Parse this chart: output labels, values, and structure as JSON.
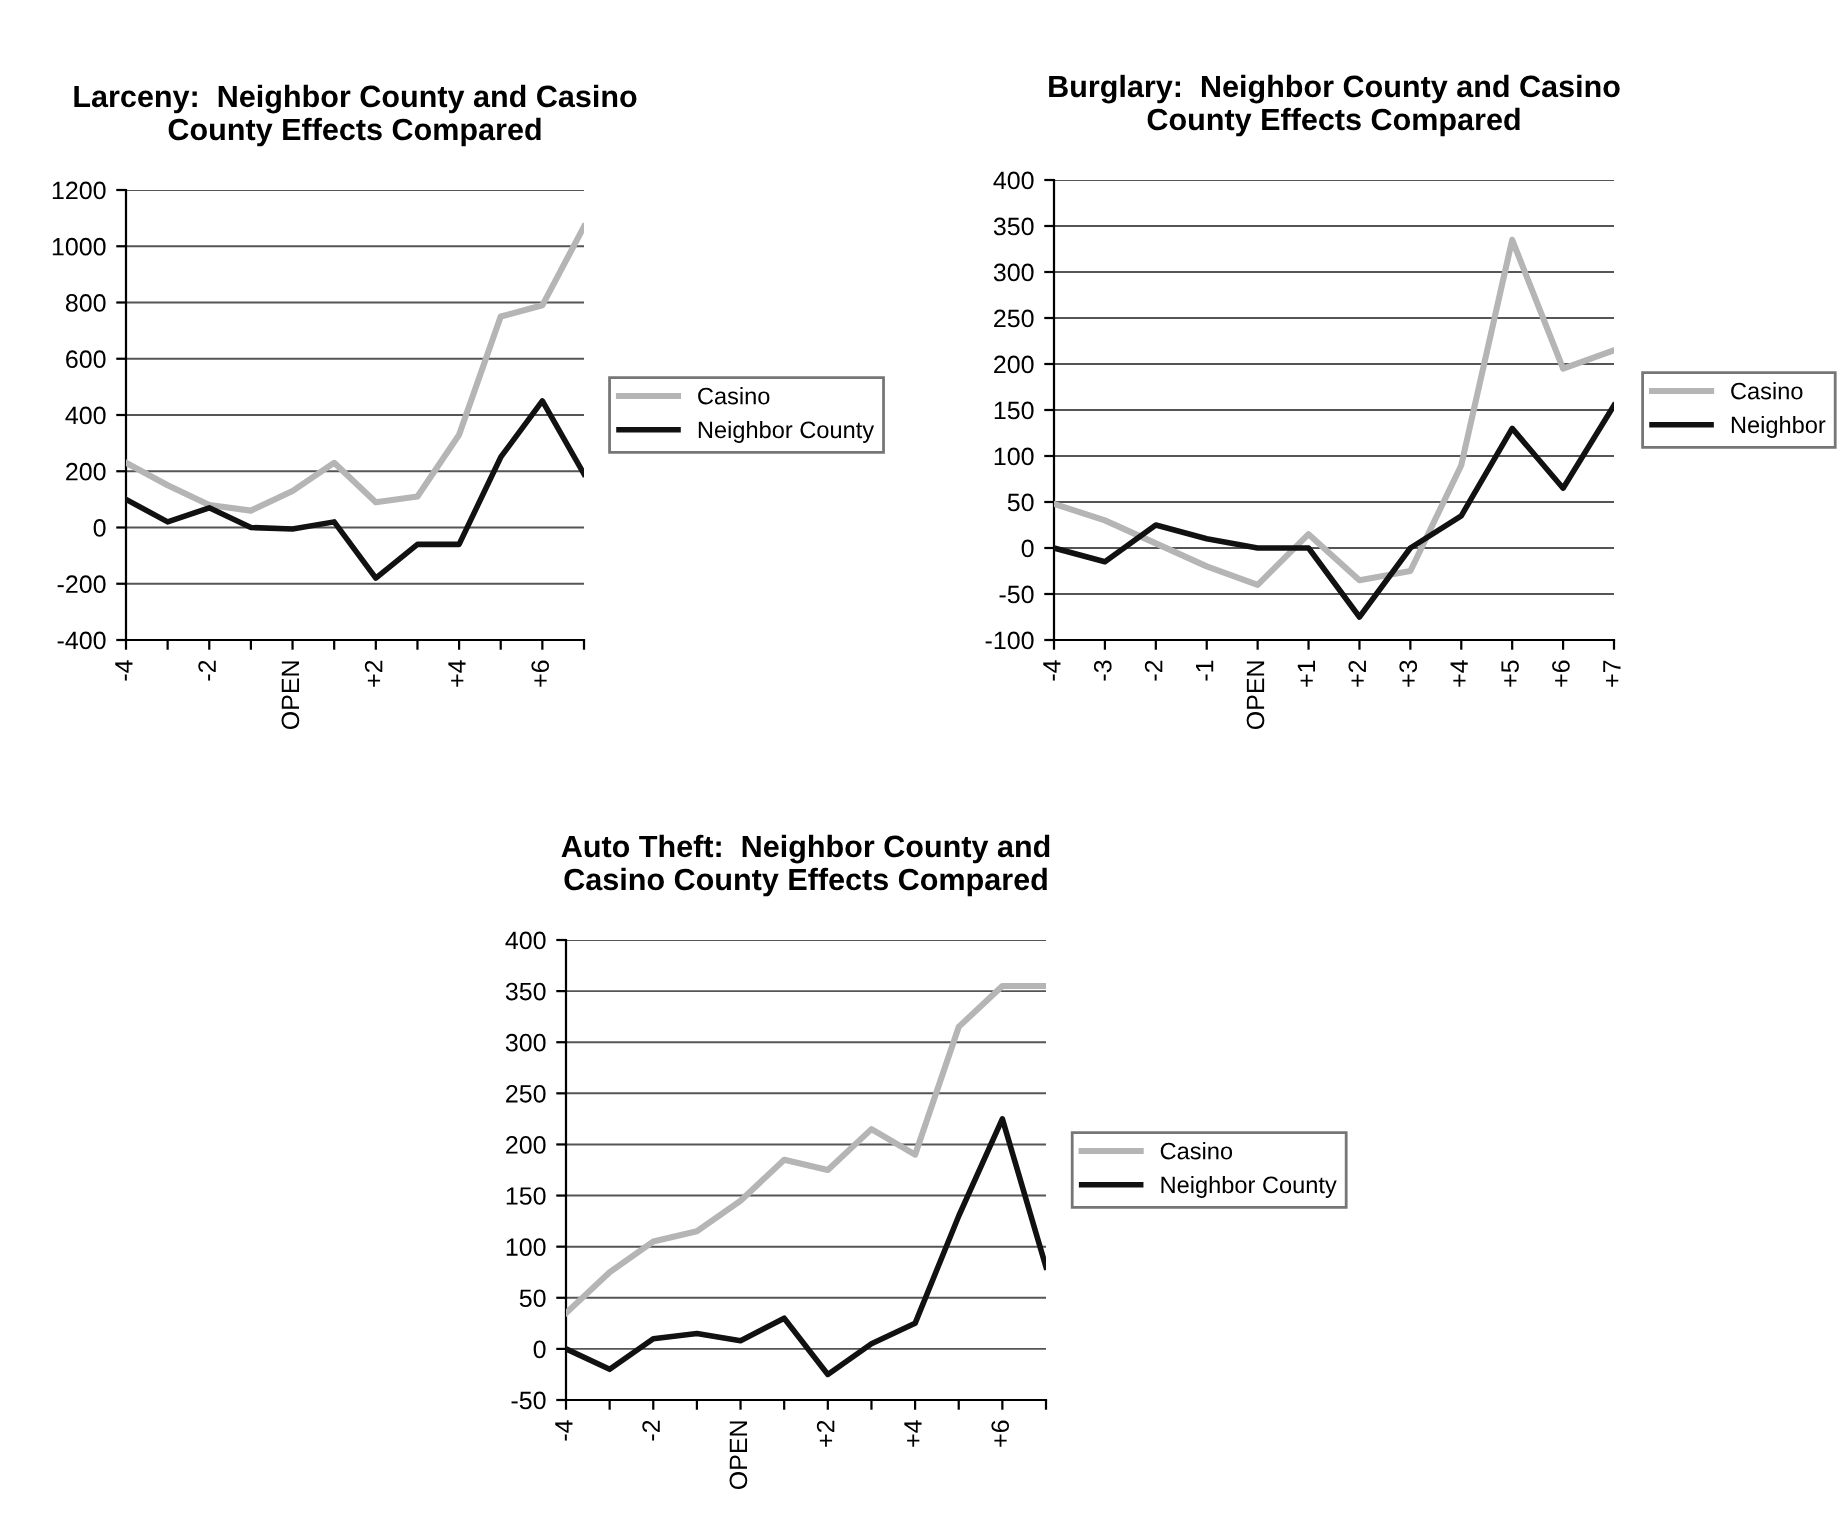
{
  "chart_data": [
    {
      "type": "line",
      "title": "Larceny:  Neighbor County and Casino\nCounty Effects Compared",
      "categories": [
        "-4",
        null,
        "-2",
        null,
        "OPEN",
        null,
        "+2",
        null,
        "+4",
        null,
        "+6",
        null
      ],
      "series": [
        {
          "name": "Casino",
          "color": "#b5b5b5",
          "values": [
            230,
            150,
            80,
            60,
            130,
            230,
            90,
            110,
            330,
            750,
            790,
            1070
          ]
        },
        {
          "name": "Neighbor County",
          "color": "#111111",
          "values": [
            100,
            20,
            70,
            0,
            -5,
            20,
            -180,
            -60,
            -60,
            250,
            450,
            190
          ]
        }
      ],
      "ylim": [
        -400,
        1200
      ],
      "yticks": [
        -400,
        -200,
        0,
        200,
        400,
        600,
        800,
        1000,
        1200
      ],
      "grid": "y",
      "legend": "right",
      "marker": "none",
      "line_style": "solid"
    },
    {
      "type": "line",
      "title": "Burglary:  Neighbor County and Casino\nCounty Effects Compared",
      "categories": [
        "-4",
        "-3",
        "-2",
        "-1",
        "OPEN",
        "+1",
        "+2",
        "+3",
        "+4",
        "+5",
        "+6",
        "+7"
      ],
      "series": [
        {
          "name": "Casino",
          "color": "#b5b5b5",
          "values": [
            48,
            30,
            5,
            -20,
            -40,
            15,
            -35,
            -25,
            90,
            335,
            195,
            215
          ]
        },
        {
          "name": "Neighbor",
          "color": "#111111",
          "values": [
            0,
            -15,
            25,
            10,
            0,
            0,
            -75,
            0,
            35,
            130,
            65,
            155
          ]
        }
      ],
      "ylim": [
        -100,
        400
      ],
      "yticks": [
        -100,
        -50,
        0,
        50,
        100,
        150,
        200,
        250,
        300,
        350,
        400
      ],
      "grid": "y",
      "legend": "right",
      "marker": "none",
      "line_style": "solid"
    },
    {
      "type": "line",
      "title": "Auto Theft:  Neighbor County and\nCasino County Effects Compared",
      "categories": [
        "-4",
        null,
        "-2",
        null,
        "OPEN",
        null,
        "+2",
        null,
        "+4",
        null,
        "+6",
        null
      ],
      "series": [
        {
          "name": "Casino",
          "color": "#b5b5b5",
          "values": [
            35,
            75,
            105,
            115,
            145,
            185,
            175,
            215,
            190,
            315,
            355,
            355
          ]
        },
        {
          "name": "Neighbor County",
          "color": "#111111",
          "values": [
            0,
            -20,
            10,
            15,
            8,
            30,
            -25,
            5,
            25,
            130,
            225,
            80
          ]
        }
      ],
      "ylim": [
        -50,
        400
      ],
      "yticks": [
        -50,
        0,
        50,
        100,
        150,
        200,
        250,
        300,
        350,
        400
      ],
      "grid": "y",
      "legend": "right",
      "marker": "none",
      "line_style": "solid"
    }
  ]
}
